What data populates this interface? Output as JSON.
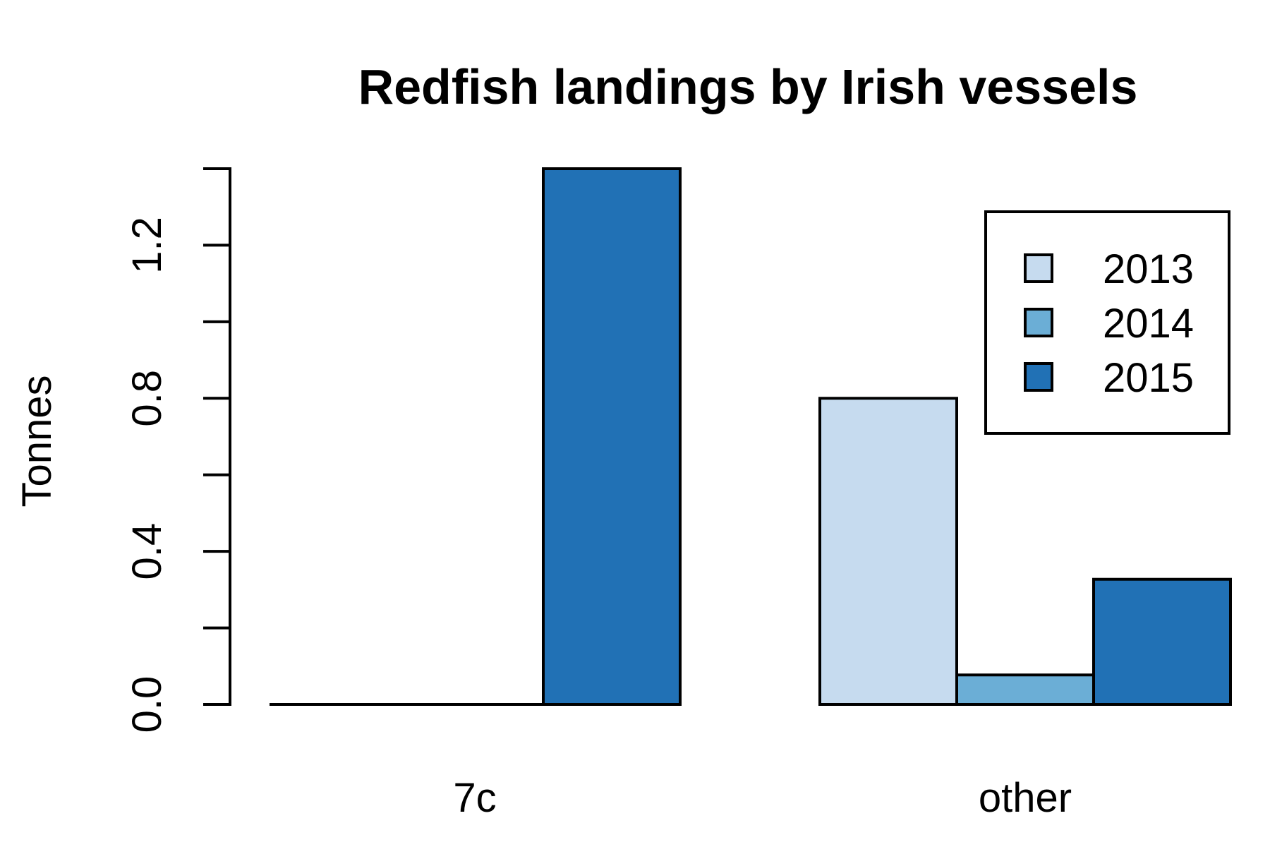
{
  "chart_data": {
    "type": "bar",
    "title": "Redfish landings by Irish vessels",
    "xlabel": "",
    "ylabel": "Tonnes",
    "categories": [
      "7c",
      "other"
    ],
    "series": [
      {
        "name": "2013",
        "values": [
          0.0,
          0.8
        ],
        "color": "#c6dbef"
      },
      {
        "name": "2014",
        "values": [
          0.0,
          0.077
        ],
        "color": "#6baed6"
      },
      {
        "name": "2015",
        "values": [
          1.4,
          0.327
        ],
        "color": "#2171b5"
      }
    ],
    "ylim": [
      0,
      1.4
    ],
    "yticks": [
      0.0,
      0.2,
      0.4,
      0.6,
      0.8,
      1.0,
      1.2,
      1.4
    ],
    "ytick_labels": [
      "0.0",
      "",
      "0.4",
      "",
      "0.8",
      "",
      "1.2",
      ""
    ],
    "grid": false,
    "legend_position": "top-right",
    "bar_border_color": "#000000"
  }
}
